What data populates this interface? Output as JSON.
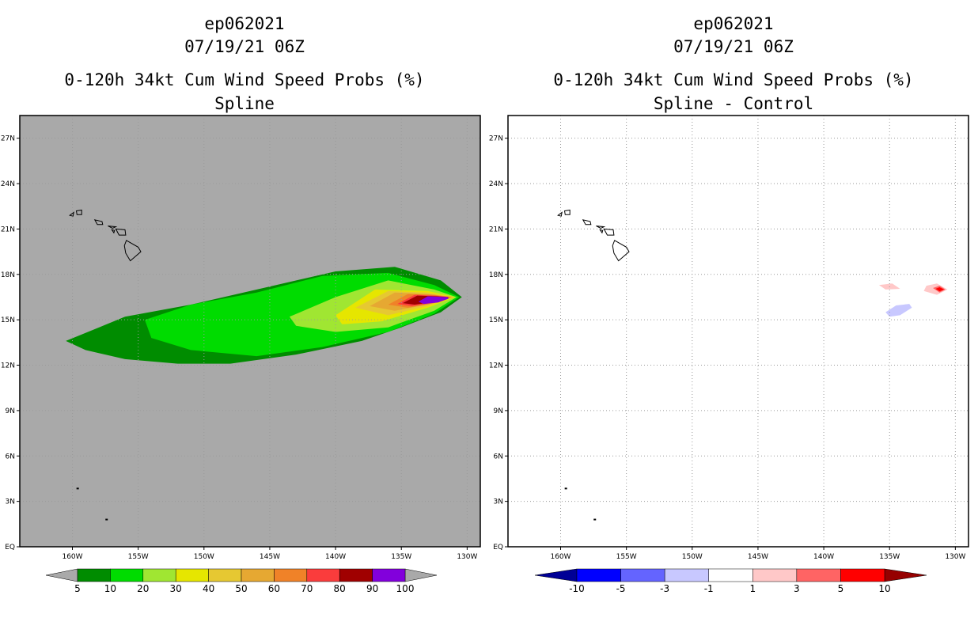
{
  "panels": [
    {
      "id": "left",
      "storm": "ep062021",
      "datetime": "07/19/21 06Z",
      "title": "0-120h 34kt Cum Wind Speed Probs (%)",
      "subtitle": "Spline",
      "background": "#a9a9a9"
    },
    {
      "id": "right",
      "storm": "ep062021",
      "datetime": "07/19/21 06Z",
      "title": "0-120h 34kt Cum Wind Speed Probs (%)",
      "subtitle": "Spline - Control",
      "background": "#ffffff"
    }
  ],
  "chart_data": [
    {
      "type": "heatmap",
      "title": "0-120h 34kt Cum Wind Speed Probs (%)",
      "subtitle": "Spline",
      "units": "%",
      "xlim": [
        -164,
        -129
      ],
      "ylim": [
        0,
        28.5
      ],
      "x_ticks": [
        -160,
        -155,
        -150,
        -145,
        -140,
        -135,
        -130
      ],
      "x_tick_labels": [
        "160W",
        "155W",
        "150W",
        "145W",
        "140W",
        "135W",
        "130W"
      ],
      "y_ticks": [
        0,
        3,
        6,
        9,
        12,
        15,
        18,
        21,
        24,
        27
      ],
      "y_tick_labels": [
        "EQ",
        "3N",
        "6N",
        "9N",
        "12N",
        "15N",
        "18N",
        "21N",
        "24N",
        "27N"
      ],
      "grid": true,
      "contour_levels": [
        5,
        10,
        20,
        30,
        40,
        50,
        60,
        70,
        80,
        90,
        100
      ],
      "colorbar_labels": [
        "5",
        "10",
        "20",
        "30",
        "40",
        "50",
        "60",
        "70",
        "80",
        "90",
        "100"
      ],
      "colors": [
        "#008c00",
        "#00dc00",
        "#a0e632",
        "#e6e600",
        "#e6c832",
        "#e6a832",
        "#f08228",
        "#fa3c3c",
        "#a00000",
        "#8200dc"
      ],
      "contours": [
        {
          "level": 5,
          "path": [
            [
              -160.5,
              13.6
            ],
            [
              -156,
              15.2
            ],
            [
              -151,
              16.0
            ],
            [
              -145,
              17.2
            ],
            [
              -140,
              18.2
            ],
            [
              -135.5,
              18.5
            ],
            [
              -132,
              17.6
            ],
            [
              -130.4,
              16.5
            ],
            [
              -132,
              15.5
            ],
            [
              -135,
              14.5
            ],
            [
              -138,
              13.6
            ],
            [
              -143,
              12.7
            ],
            [
              -148,
              12.1
            ],
            [
              -152,
              12.1
            ],
            [
              -156,
              12.4
            ],
            [
              -159,
              13.0
            ]
          ]
        },
        {
          "level": 10,
          "path": [
            [
              -154.5,
              15.0
            ],
            [
              -151,
              16.0
            ],
            [
              -146,
              16.8
            ],
            [
              -141,
              17.9
            ],
            [
              -136,
              18.1
            ],
            [
              -132.5,
              17.3
            ],
            [
              -130.6,
              16.5
            ],
            [
              -132.5,
              15.4
            ],
            [
              -136,
              14.2
            ],
            [
              -141,
              13.2
            ],
            [
              -146,
              12.6
            ],
            [
              -151,
              13.0
            ],
            [
              -154,
              13.8
            ]
          ]
        },
        {
          "level": 20,
          "path": [
            [
              -143.5,
              15.2
            ],
            [
              -140,
              16.5
            ],
            [
              -136,
              17.6
            ],
            [
              -132.5,
              17.0
            ],
            [
              -130.8,
              16.5
            ],
            [
              -132.5,
              15.6
            ],
            [
              -136,
              14.5
            ],
            [
              -140,
              14.2
            ],
            [
              -143,
              14.6
            ]
          ]
        },
        {
          "level": 30,
          "path": [
            [
              -140,
              15.3
            ],
            [
              -137,
              17.0
            ],
            [
              -133,
              16.9
            ],
            [
              -130.9,
              16.5
            ],
            [
              -133,
              15.8
            ],
            [
              -136.5,
              14.9
            ],
            [
              -139.5,
              14.7
            ]
          ]
        },
        {
          "level": 40,
          "path": [
            [
              -138.5,
              15.8
            ],
            [
              -136,
              16.9
            ],
            [
              -133,
              16.8
            ],
            [
              -131,
              16.5
            ],
            [
              -133,
              15.9
            ],
            [
              -136,
              15.3
            ]
          ]
        },
        {
          "level": 50,
          "path": [
            [
              -137.4,
              15.9
            ],
            [
              -135.5,
              16.8
            ],
            [
              -133,
              16.7
            ],
            [
              -131.1,
              16.5
            ],
            [
              -133,
              16.0
            ],
            [
              -135.5,
              15.6
            ]
          ]
        },
        {
          "level": 60,
          "path": [
            [
              -136,
              16.0
            ],
            [
              -134.5,
              16.7
            ],
            [
              -132.5,
              16.65
            ],
            [
              -131.2,
              16.5
            ],
            [
              -132.5,
              16.1
            ],
            [
              -134.5,
              15.8
            ]
          ]
        },
        {
          "level": 70,
          "path": [
            [
              -135.3,
              16.05
            ],
            [
              -134,
              16.65
            ],
            [
              -132.5,
              16.6
            ],
            [
              -131.3,
              16.5
            ],
            [
              -132.5,
              16.15
            ],
            [
              -134.2,
              15.9
            ]
          ]
        },
        {
          "level": 80,
          "path": [
            [
              -134.9,
              16.1
            ],
            [
              -133.8,
              16.6
            ],
            [
              -132.3,
              16.55
            ],
            [
              -131.4,
              16.5
            ],
            [
              -132.3,
              16.2
            ],
            [
              -134,
              16.0
            ]
          ]
        },
        {
          "level": 90,
          "path": [
            [
              -133.7,
              16.2
            ],
            [
              -133,
              16.55
            ],
            [
              -131.5,
              16.5
            ],
            [
              -131.4,
              16.4
            ],
            [
              -132.2,
              16.15
            ],
            [
              -133.3,
              16.05
            ]
          ]
        }
      ]
    },
    {
      "type": "heatmap",
      "title": "0-120h 34kt Cum Wind Speed Probs (%)",
      "subtitle": "Spline - Control",
      "units": "%",
      "xlim": [
        -164,
        -129
      ],
      "ylim": [
        0,
        28.5
      ],
      "x_ticks": [
        -160,
        -155,
        -150,
        -145,
        -140,
        -135,
        -130
      ],
      "x_tick_labels": [
        "160W",
        "155W",
        "150W",
        "145W",
        "140W",
        "135W",
        "130W"
      ],
      "y_ticks": [
        0,
        3,
        6,
        9,
        12,
        15,
        18,
        21,
        24,
        27
      ],
      "y_tick_labels": [
        "EQ",
        "3N",
        "6N",
        "9N",
        "12N",
        "15N",
        "18N",
        "21N",
        "24N",
        "27N"
      ],
      "grid": true,
      "contour_levels": [
        -10,
        -5,
        -3,
        -1,
        1,
        3,
        5,
        10
      ],
      "colorbar_labels": [
        "-10",
        "-5",
        "-3",
        "-1",
        "1",
        "3",
        "5",
        "10"
      ],
      "colors": [
        "#000096",
        "#0000ff",
        "#6464ff",
        "#c8c8ff",
        "#ffffff",
        "#ffc8c8",
        "#ff6464",
        "#ff0000",
        "#960000"
      ],
      "contours": [
        {
          "level": 1,
          "path": [
            [
              -135.8,
              17.3
            ],
            [
              -134.8,
              17.4
            ],
            [
              -134.2,
              17.05
            ],
            [
              -135.3,
              17.0
            ]
          ]
        },
        {
          "level": 1,
          "path": [
            [
              -132.2,
              17.25
            ],
            [
              -131.4,
              17.4
            ],
            [
              -130.6,
              17.0
            ],
            [
              -131.4,
              16.65
            ],
            [
              -132.4,
              16.9
            ]
          ]
        },
        {
          "level": 3,
          "path": [
            [
              -131.7,
              17.1
            ],
            [
              -131.2,
              17.25
            ],
            [
              -130.75,
              17.0
            ],
            [
              -131.2,
              16.8
            ]
          ]
        },
        {
          "level": 5,
          "path": [
            [
              -131.5,
              17.05
            ],
            [
              -131.2,
              17.15
            ],
            [
              -130.85,
              17.0
            ],
            [
              -131.2,
              16.88
            ]
          ]
        },
        {
          "level": -1,
          "path": [
            [
              -135.3,
              15.5
            ],
            [
              -134.5,
              15.95
            ],
            [
              -133.5,
              16.05
            ],
            [
              -133.3,
              15.8
            ],
            [
              -134.2,
              15.3
            ],
            [
              -135.0,
              15.2
            ]
          ]
        }
      ]
    }
  ],
  "colors": {
    "land_outline": "#000000",
    "grid": "#9a9a9a",
    "left_background": "#a9a9a9",
    "right_background": "#ffffff"
  }
}
